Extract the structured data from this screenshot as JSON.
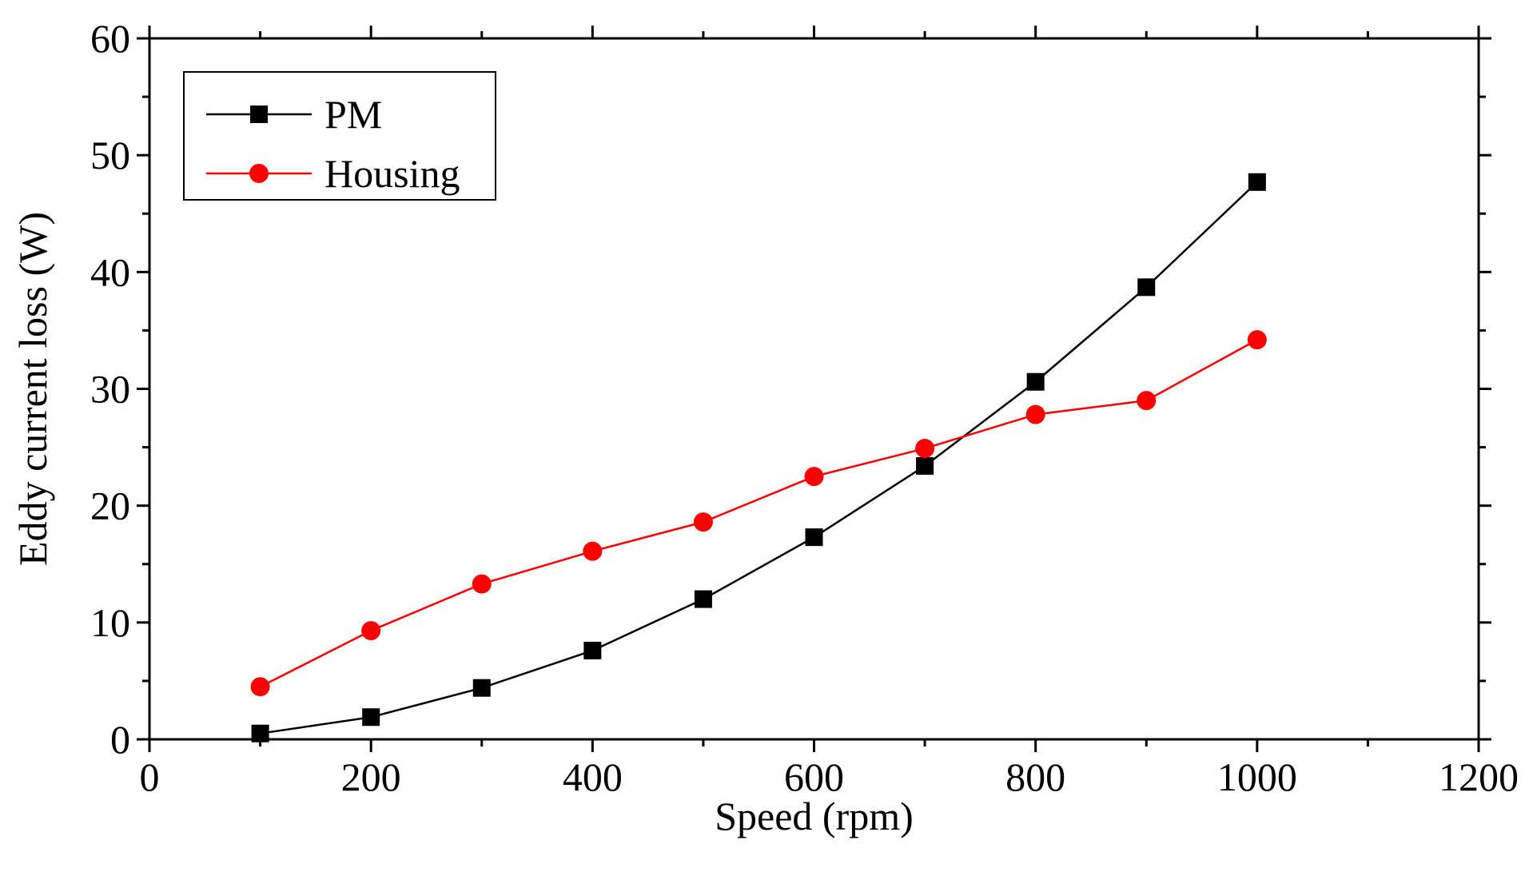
{
  "chart_data": {
    "type": "line",
    "title": "",
    "xlabel": "Speed (rpm)",
    "ylabel": "Eddy current loss (W)",
    "xlim": [
      0,
      1200
    ],
    "ylim": [
      0,
      60
    ],
    "xticks": [
      0,
      200,
      400,
      600,
      800,
      1000,
      1200
    ],
    "yticks": [
      0,
      10,
      20,
      30,
      40,
      50,
      60
    ],
    "x": [
      100,
      200,
      300,
      400,
      500,
      600,
      700,
      800,
      900,
      1000
    ],
    "grid": false,
    "legend_position": "top-left",
    "series": [
      {
        "name": "PM",
        "color": "#000000",
        "marker": "square",
        "values": [
          0.5,
          1.9,
          4.4,
          7.6,
          12.0,
          17.3,
          23.4,
          30.6,
          38.7,
          47.7
        ]
      },
      {
        "name": "Housing",
        "color": "#ff0000",
        "marker": "circle",
        "values": [
          4.5,
          9.3,
          13.3,
          16.1,
          18.6,
          22.5,
          24.9,
          27.8,
          29.0,
          34.2
        ]
      }
    ]
  }
}
